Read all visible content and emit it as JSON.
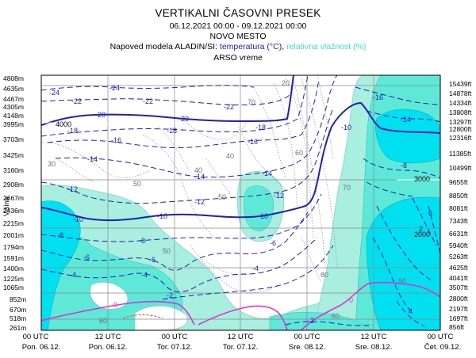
{
  "header": {
    "title": "VERTIKALNI ČASOVNI PRESEK",
    "dates": "06.12.2021 00:00 - 09.12.2021 00:00",
    "station": "NOVO MESTO",
    "model_prefix": "Napoved modela ALADIN/SI:",
    "temperature_label": "temperatura (°C)",
    "comma": ",",
    "humidity_label": "relativna vlažnost (%)",
    "source": "ARSO vreme"
  },
  "colors": {
    "temperature": "#2020b0",
    "humidity_light": "#a8efe0",
    "humidity_mid": "#5ee8d8",
    "humidity_high": "#00e0f0",
    "zero_isotherm": "#e030d0",
    "grid": "#888888"
  },
  "chart_data": {
    "type": "heatmap",
    "title": "VERTIKALNI ČASOVNI PRESEK",
    "ylabel": "Višina",
    "y_left_ticks_m": [
      "4808m",
      "4635m",
      "4467m",
      "4305m",
      "4148m",
      "3995m",
      "3703m",
      "3425m",
      "3160m",
      "2908m",
      "2667m",
      "2436m",
      "2215m",
      "2001m",
      "1794m",
      "1591m",
      "1400m",
      "1225m",
      "1065m",
      "852m",
      "670m",
      "518m",
      "261m"
    ],
    "y_right_ticks_ft": [
      "15439ft",
      "14878ft",
      "14334ft",
      "13808ft",
      "13297ft",
      "12800ft",
      "12316ft",
      "11385ft",
      "10499ft",
      "9655ft",
      "8850ft",
      "8081ft",
      "7343ft",
      "6631ft",
      "5940ft",
      "5263ft",
      "4625ft",
      "4041ft",
      "3507ft",
      "2800ft",
      "2197ft",
      "1697ft",
      "856ft"
    ],
    "x_ticks": [
      {
        "time": "00 UTC",
        "day": "Pon. 06.12."
      },
      {
        "time": "12 UTC",
        "day": "Pon. 06.12."
      },
      {
        "time": "00 UTC",
        "day": "Tor. 07.12."
      },
      {
        "time": "12 UTC",
        "day": "Tor. 07.12."
      },
      {
        "time": "00 UTC",
        "day": "Sre. 08.12."
      },
      {
        "time": "12 UTC",
        "day": "Sre. 08.12."
      },
      {
        "time": "00 UTC",
        "day": "Čet. 09.12."
      }
    ],
    "temperature_contour_labels": [
      "-24",
      "-22",
      "-20",
      "-18",
      "-16",
      "-14",
      "-12",
      "-10",
      "-8",
      "-6",
      "-4",
      "-2",
      "0",
      "2",
      "4",
      "6"
    ],
    "humidity_contour_labels": [
      "20",
      "30",
      "40",
      "50",
      "60",
      "70",
      "80",
      "90"
    ],
    "height_contour_labels": [
      "4000",
      "3000",
      "2000"
    ],
    "grid": true
  }
}
